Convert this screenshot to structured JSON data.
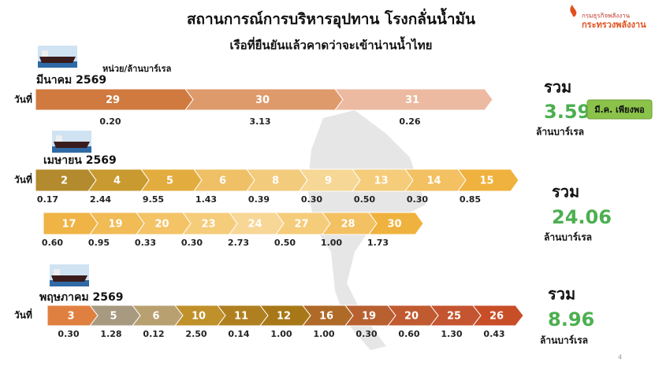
{
  "header": {
    "title": "สถานการณ์การบริหารอุปทาน โรงกลั่นน้ำมัน",
    "subtitle": "เรือที่ยืนยันแล้วคาดว่าจะเข้าน่านน้ำไทย",
    "logo_line1": "กรมธุรกิจพลังงาน",
    "logo_line2": "กระทรวงพลังงาน"
  },
  "unit": "หน่วย/ล้านบาร์เรล",
  "day_label": "วันที่",
  "total_label": "รวม",
  "total_unit": "ล้านบาร์เรล",
  "sections": [
    {
      "month": "มีนาคม 2569",
      "rows": [
        {
          "days": [
            29,
            30,
            31
          ],
          "values": [
            "0.20",
            "3.13",
            "0.26"
          ]
        }
      ],
      "total": "3.59",
      "badge": "มี.ค. เพียงพอ"
    },
    {
      "month": "เมษายน 2569",
      "rows": [
        {
          "days": [
            2,
            4,
            5,
            6,
            8,
            9,
            13,
            14,
            15
          ],
          "values": [
            "0.17",
            "2.44",
            "9.55",
            "1.43",
            "0.39",
            "0.30",
            "0.50",
            "0.30",
            "0.85"
          ]
        },
        {
          "days": [
            17,
            19,
            20,
            23,
            24,
            27,
            28,
            30
          ],
          "values": [
            "0.60",
            "0.95",
            "0.33",
            "0.30",
            "2.73",
            "0.50",
            "1.00",
            "1.73"
          ]
        }
      ],
      "total": "24.06"
    },
    {
      "month": "พฤษภาคม 2569",
      "rows": [
        {
          "days": [
            3,
            5,
            6,
            10,
            11,
            12,
            16,
            19,
            20,
            25,
            26
          ],
          "values": [
            "0.30",
            "1.28",
            "0.12",
            "2.50",
            "0.14",
            "1.00",
            "1.00",
            "0.30",
            "0.60",
            "1.30",
            "0.43"
          ]
        }
      ],
      "total": "8.96"
    }
  ],
  "page_number": "4"
}
